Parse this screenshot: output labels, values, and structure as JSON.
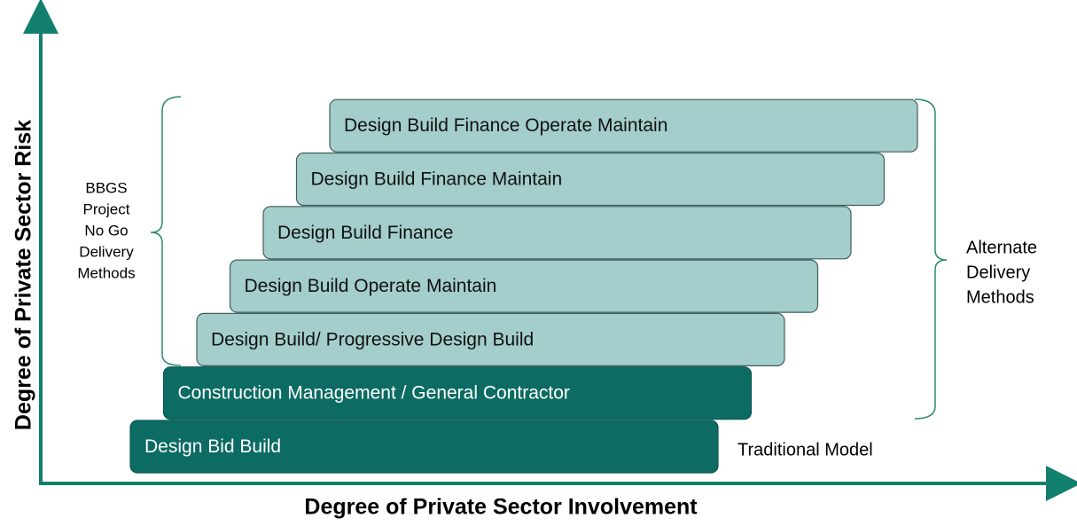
{
  "axes": {
    "y_label": "Degree of Private Sector Risk",
    "x_label": "Degree of Private Sector Involvement"
  },
  "bars": [
    {
      "label": "Design Build Finance Operate Maintain",
      "style": "light"
    },
    {
      "label": "Design Build Finance Maintain",
      "style": "light"
    },
    {
      "label": "Design Build Finance",
      "style": "light"
    },
    {
      "label": "Design Build Operate Maintain",
      "style": "light"
    },
    {
      "label": "Design Build/ Progressive Design Build",
      "style": "light"
    },
    {
      "label": "Construction Management / General Contractor",
      "style": "dark"
    },
    {
      "label": "Design Bid Build",
      "style": "dark"
    }
  ],
  "annotations": {
    "left_bracket": [
      "BBGS",
      "Project",
      "No Go",
      "Delivery",
      "Methods"
    ],
    "right_bracket": [
      "Alternate",
      "Delivery",
      "Methods"
    ],
    "traditional": "Traditional Model"
  }
}
